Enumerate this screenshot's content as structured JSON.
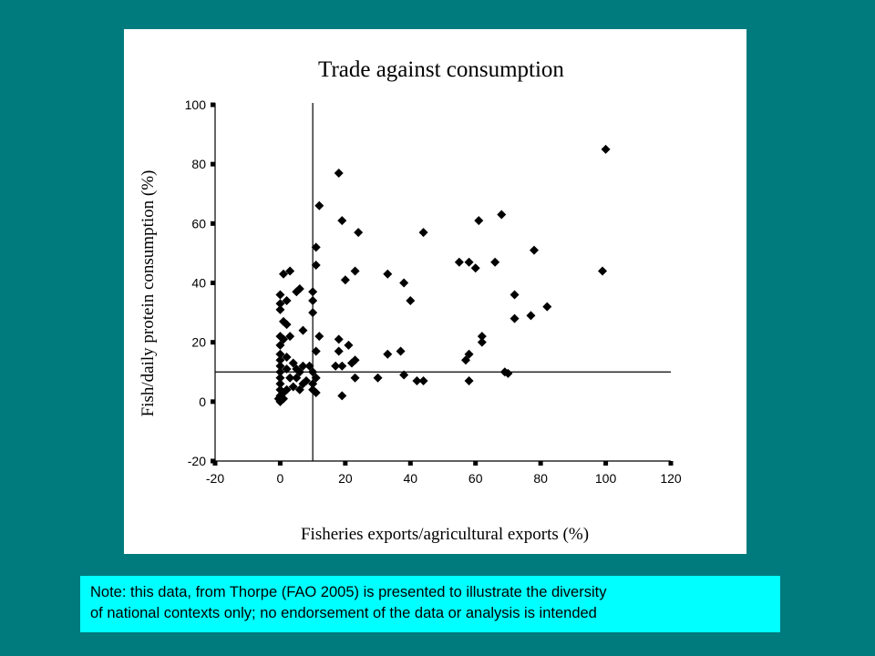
{
  "slide": {
    "background": "#007B7D"
  },
  "note": {
    "line1": "Note:  this data, from Thorpe (FAO 2005) is presented to illustrate the diversity",
    "line2": "of national contexts only; no endorsement of the data or analysis is intended",
    "background": "#00FFFF"
  },
  "chart_data": {
    "type": "scatter",
    "title": "Trade against consumption",
    "xlabel": "Fisheries exports/agricultural exports (%)",
    "ylabel": "Fish/daily protein consumption (%)",
    "xlim": [
      -20,
      120
    ],
    "ylim": [
      -20,
      100
    ],
    "xticks": [
      -20,
      0,
      20,
      40,
      60,
      80,
      100,
      120
    ],
    "yticks": [
      -20,
      0,
      20,
      40,
      60,
      80,
      100
    ],
    "reference_lines": {
      "x": 10,
      "y": 10
    },
    "grid": false,
    "marker": "diamond",
    "color": "#000000",
    "series": [
      {
        "points": [
          [
            100,
            85
          ],
          [
            99,
            44
          ],
          [
            82,
            32
          ],
          [
            78,
            51
          ],
          [
            77,
            29
          ],
          [
            72,
            36
          ],
          [
            72,
            28
          ],
          [
            68,
            63
          ],
          [
            69,
            10
          ],
          [
            70,
            9.5
          ],
          [
            66,
            47
          ],
          [
            62,
            22
          ],
          [
            62,
            20
          ],
          [
            61,
            61
          ],
          [
            60,
            45
          ],
          [
            58,
            47
          ],
          [
            55,
            47
          ],
          [
            57,
            14
          ],
          [
            58,
            16
          ],
          [
            58,
            7
          ],
          [
            44,
            57
          ],
          [
            44,
            7
          ],
          [
            42,
            7
          ],
          [
            40,
            34
          ],
          [
            38,
            40
          ],
          [
            38,
            9
          ],
          [
            37,
            17
          ],
          [
            33,
            43
          ],
          [
            33,
            16
          ],
          [
            30,
            8
          ],
          [
            24,
            57
          ],
          [
            23,
            44
          ],
          [
            23,
            14
          ],
          [
            22,
            13
          ],
          [
            23,
            8
          ],
          [
            21,
            19
          ],
          [
            20,
            41
          ],
          [
            19,
            61
          ],
          [
            18,
            77
          ],
          [
            18,
            21
          ],
          [
            18,
            17
          ],
          [
            17,
            12
          ],
          [
            19,
            12
          ],
          [
            19,
            2
          ],
          [
            12,
            66
          ],
          [
            11,
            52
          ],
          [
            11,
            46
          ],
          [
            12,
            22
          ],
          [
            10,
            37
          ],
          [
            10,
            34
          ],
          [
            10,
            30
          ],
          [
            11,
            17
          ],
          [
            9,
            12
          ],
          [
            10,
            10
          ],
          [
            11,
            8
          ],
          [
            10,
            6
          ],
          [
            10,
            4
          ],
          [
            11,
            3
          ],
          [
            7,
            24
          ],
          [
            6,
            38
          ],
          [
            5,
            37
          ],
          [
            7,
            12
          ],
          [
            5,
            11
          ],
          [
            6,
            10
          ],
          [
            4,
            13
          ],
          [
            5,
            8
          ],
          [
            4,
            5
          ],
          [
            7,
            6
          ],
          [
            6,
            4
          ],
          [
            8,
            7
          ],
          [
            3,
            44
          ],
          [
            1,
            43
          ],
          [
            2,
            34
          ],
          [
            2,
            26
          ],
          [
            3,
            22
          ],
          [
            1,
            21
          ],
          [
            2,
            15
          ],
          [
            2,
            11
          ],
          [
            3,
            8
          ],
          [
            2,
            4
          ],
          [
            1,
            3
          ],
          [
            0,
            36
          ],
          [
            0,
            33
          ],
          [
            0,
            31
          ],
          [
            1,
            27
          ],
          [
            0,
            22
          ],
          [
            0,
            19
          ],
          [
            0,
            16
          ],
          [
            0,
            14
          ],
          [
            0,
            12
          ],
          [
            0,
            10
          ],
          [
            0,
            8
          ],
          [
            0,
            6
          ],
          [
            0,
            4
          ],
          [
            0,
            2
          ],
          [
            -0.5,
            1
          ],
          [
            1,
            1
          ],
          [
            0,
            0
          ]
        ]
      }
    ]
  }
}
